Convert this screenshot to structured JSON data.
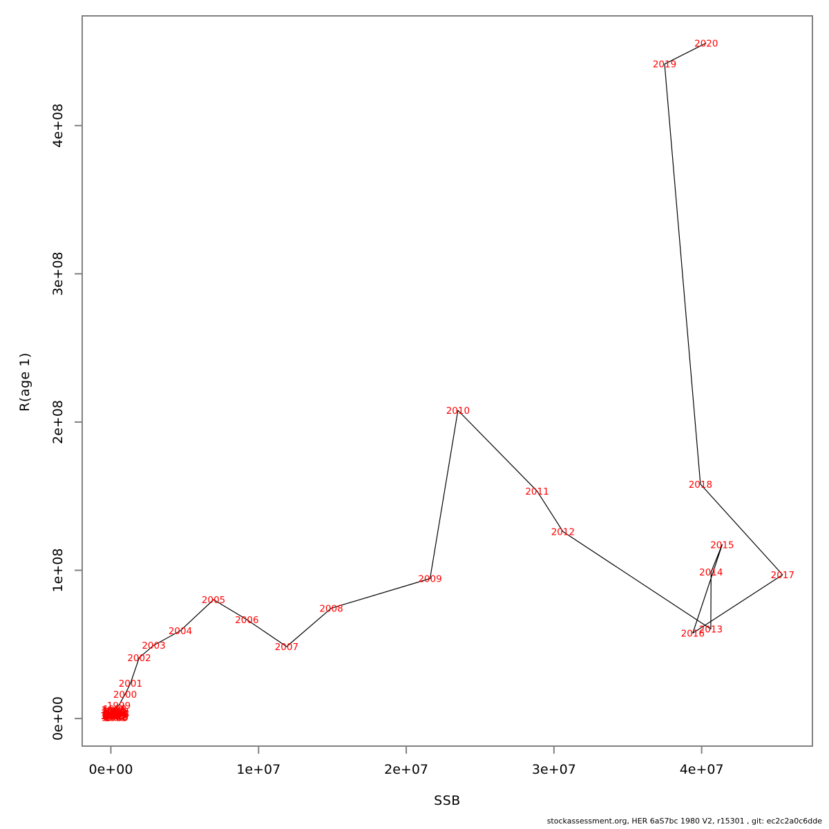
{
  "page": {
    "background_color": "#ffffff",
    "footer_text": "stockassessment.org, HER 6aS7bc 1980 V2, r15301 , git: ec2c2a0c6dde"
  },
  "chart_data": {
    "type": "line",
    "title": "",
    "xlabel": "SSB",
    "ylabel": "R(age 1)",
    "grid": false,
    "legend": false,
    "point_label_color": "#ff0000",
    "line_color": "#000000",
    "axis_color": "#808080",
    "tick_label_color": "#000000",
    "xlim": [
      -1940000,
      47500000
    ],
    "ylim": [
      -18600000,
      474000000
    ],
    "x_ticks": {
      "values": [
        0,
        10000000,
        20000000,
        30000000,
        40000000
      ],
      "labels": [
        "0e+00",
        "1e+07",
        "2e+07",
        "3e+07",
        "4e+07"
      ]
    },
    "y_ticks": {
      "values": [
        0,
        100000000,
        200000000,
        300000000,
        400000000
      ],
      "labels": [
        "0e+00",
        "1e+08",
        "2e+08",
        "3e+08",
        "4e+08"
      ]
    },
    "series": [
      {
        "name": "stock-recruitment-trajectory",
        "points": [
          {
            "year": "1980",
            "ssb": 150000,
            "r": 800000
          },
          {
            "year": "1981",
            "ssb": 280000,
            "r": 1400000
          },
          {
            "year": "1982",
            "ssb": 90000,
            "r": 2100000
          },
          {
            "year": "1983",
            "ssb": 340000,
            "r": 600000
          },
          {
            "year": "1984",
            "ssb": 200000,
            "r": 2900000
          },
          {
            "year": "1985",
            "ssb": 410000,
            "r": 1100000
          },
          {
            "year": "1986",
            "ssb": 120000,
            "r": 3800000
          },
          {
            "year": "1987",
            "ssb": 300000,
            "r": 2400000
          },
          {
            "year": "1988",
            "ssb": 450000,
            "r": 3200000
          },
          {
            "year": "1989",
            "ssb": 180000,
            "r": 4600000
          },
          {
            "year": "1990",
            "ssb": 360000,
            "r": 4000000
          },
          {
            "year": "1991",
            "ssb": 240000,
            "r": 5300000
          },
          {
            "year": "1992",
            "ssb": 420000,
            "r": 4900000
          },
          {
            "year": "1993",
            "ssb": 100000,
            "r": 1800000
          },
          {
            "year": "1994",
            "ssb": 320000,
            "r": 3400000
          },
          {
            "year": "1995",
            "ssb": 220000,
            "r": 2000000
          },
          {
            "year": "1996",
            "ssb": 390000,
            "r": 2600000
          },
          {
            "year": "1997",
            "ssb": 140000,
            "r": 5800000
          },
          {
            "year": "1998",
            "ssb": 260000,
            "r": 6500000
          },
          {
            "year": "1999",
            "ssb": 540000,
            "r": 8900000
          },
          {
            "year": "2000",
            "ssb": 960000,
            "r": 16300000
          },
          {
            "year": "2001",
            "ssb": 1330000,
            "r": 23800000
          },
          {
            "year": "2002",
            "ssb": 1920000,
            "r": 41000000
          },
          {
            "year": "2003",
            "ssb": 2900000,
            "r": 49400000
          },
          {
            "year": "2004",
            "ssb": 4700000,
            "r": 59200000
          },
          {
            "year": "2005",
            "ssb": 6950000,
            "r": 80200000
          },
          {
            "year": "2006",
            "ssb": 9210000,
            "r": 66700000
          },
          {
            "year": "2007",
            "ssb": 11900000,
            "r": 48500000
          },
          {
            "year": "2008",
            "ssb": 14920000,
            "r": 74400000
          },
          {
            "year": "2009",
            "ssb": 21610000,
            "r": 94400000
          },
          {
            "year": "2010",
            "ssb": 23500000,
            "r": 207900000
          },
          {
            "year": "2011",
            "ssb": 28860000,
            "r": 153400000
          },
          {
            "year": "2012",
            "ssb": 30610000,
            "r": 126100000
          },
          {
            "year": "2013",
            "ssb": 40620000,
            "r": 60400000
          },
          {
            "year": "2014",
            "ssb": 40640000,
            "r": 98800000
          },
          {
            "year": "2015",
            "ssb": 41390000,
            "r": 117300000
          },
          {
            "year": "2016",
            "ssb": 39400000,
            "r": 57600000
          },
          {
            "year": "2017",
            "ssb": 45480000,
            "r": 97000000
          },
          {
            "year": "2018",
            "ssb": 39920000,
            "r": 158100000
          },
          {
            "year": "2019",
            "ssb": 37490000,
            "r": 441500000
          },
          {
            "year": "2020",
            "ssb": 40310000,
            "r": 455700000
          }
        ]
      }
    ]
  }
}
